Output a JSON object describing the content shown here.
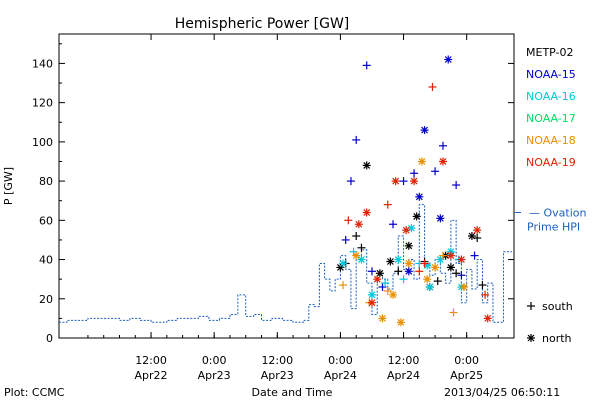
{
  "chart_data": {
    "type": "scatter",
    "title": "Hemispheric Power [GW]",
    "ylabel": "P [GW]",
    "xlabel": "Date and Time",
    "footer_left": "Plot: CCMC",
    "footer_right": "2013/04/25 06:50:11",
    "ylim": [
      0,
      155
    ],
    "yticks": [
      0,
      20,
      40,
      60,
      80,
      100,
      120,
      140
    ],
    "xlim": [
      "2013-04-21T18:30",
      "2013-04-25T09:00"
    ],
    "xticks": [
      {
        "t": "2013-04-22T12:00",
        "line1": "12:00",
        "line2": "Apr22"
      },
      {
        "t": "2013-04-23T00:00",
        "line1": "0:00",
        "line2": "Apr23"
      },
      {
        "t": "2013-04-23T12:00",
        "line1": "12:00",
        "line2": "Apr23"
      },
      {
        "t": "2013-04-24T00:00",
        "line1": "0:00",
        "line2": "Apr24"
      },
      {
        "t": "2013-04-24T12:00",
        "line1": "12:00",
        "line2": "Apr24"
      },
      {
        "t": "2013-04-25T00:00",
        "line1": "0:00",
        "line2": "Apr25"
      }
    ],
    "grid": false,
    "legend_position": "right",
    "legend": [
      {
        "name": "METP-02",
        "color": "#000000"
      },
      {
        "name": "NOAA-15",
        "color": "#0000c8"
      },
      {
        "name": "NOAA-16",
        "color": "#00c8dc"
      },
      {
        "name": "NOAA-17",
        "color": "#00dc64"
      },
      {
        "name": "NOAA-18",
        "color": "#e89000"
      },
      {
        "name": "NOAA-19",
        "color": "#e02000"
      }
    ],
    "ovation": {
      "name": "— Ovation Prime HPI",
      "line1": "— Ovation",
      "line2": "Prime HPI",
      "color": "#1c5fbf",
      "arrow_value": 64,
      "points": [
        [
          "2013-04-21T18:30",
          8
        ],
        [
          "2013-04-21T20:00",
          9
        ],
        [
          "2013-04-21T22:00",
          9
        ],
        [
          "2013-04-22T00:00",
          10
        ],
        [
          "2013-04-22T03:00",
          10
        ],
        [
          "2013-04-22T06:00",
          9
        ],
        [
          "2013-04-22T08:00",
          10
        ],
        [
          "2013-04-22T10:00",
          9
        ],
        [
          "2013-04-22T12:00",
          8
        ],
        [
          "2013-04-22T15:00",
          9
        ],
        [
          "2013-04-22T17:00",
          10
        ],
        [
          "2013-04-22T19:00",
          10
        ],
        [
          "2013-04-22T21:00",
          11
        ],
        [
          "2013-04-22T23:00",
          9
        ],
        [
          "2013-04-23T01:00",
          10
        ],
        [
          "2013-04-23T03:00",
          12
        ],
        [
          "2013-04-23T04:30",
          22
        ],
        [
          "2013-04-23T06:00",
          11
        ],
        [
          "2013-04-23T07:30",
          12
        ],
        [
          "2013-04-23T09:00",
          9
        ],
        [
          "2013-04-23T11:00",
          10
        ],
        [
          "2013-04-23T13:00",
          9
        ],
        [
          "2013-04-23T15:00",
          8
        ],
        [
          "2013-04-23T17:00",
          9
        ],
        [
          "2013-04-23T18:00",
          17
        ],
        [
          "2013-04-23T19:00",
          16
        ],
        [
          "2013-04-23T20:00",
          38
        ],
        [
          "2013-04-23T21:00",
          30
        ],
        [
          "2013-04-23T22:00",
          24
        ],
        [
          "2013-04-23T23:00",
          30
        ],
        [
          "2013-04-24T00:00",
          42
        ],
        [
          "2013-04-24T01:00",
          35
        ],
        [
          "2013-04-24T02:00",
          15
        ],
        [
          "2013-04-24T03:00",
          40
        ],
        [
          "2013-04-24T04:00",
          45
        ],
        [
          "2013-04-24T05:00",
          28
        ],
        [
          "2013-04-24T06:00",
          12
        ],
        [
          "2013-04-24T07:00",
          32
        ],
        [
          "2013-04-24T08:00",
          30
        ],
        [
          "2013-04-24T09:00",
          25
        ],
        [
          "2013-04-24T10:00",
          33
        ],
        [
          "2013-04-24T11:00",
          52
        ],
        [
          "2013-04-24T12:00",
          35
        ],
        [
          "2013-04-24T13:00",
          40
        ],
        [
          "2013-04-24T14:00",
          30
        ],
        [
          "2013-04-24T15:00",
          68
        ],
        [
          "2013-04-24T16:00",
          38
        ],
        [
          "2013-04-24T17:00",
          32
        ],
        [
          "2013-04-24T18:00",
          40
        ],
        [
          "2013-04-24T19:00",
          33
        ],
        [
          "2013-04-24T20:00",
          28
        ],
        [
          "2013-04-24T21:00",
          60
        ],
        [
          "2013-04-24T22:00",
          38
        ],
        [
          "2013-04-24T23:00",
          18
        ],
        [
          "2013-04-25T00:00",
          35
        ],
        [
          "2013-04-25T01:00",
          25
        ],
        [
          "2013-04-25T02:00",
          40
        ],
        [
          "2013-04-25T03:00",
          18
        ],
        [
          "2013-04-25T04:00",
          28
        ],
        [
          "2013-04-25T05:00",
          8
        ],
        [
          "2013-04-25T06:00",
          8
        ],
        [
          "2013-04-25T07:00",
          44
        ]
      ]
    },
    "marker_legend": [
      {
        "label": "south",
        "marker": "plus"
      },
      {
        "label": "north",
        "marker": "star"
      }
    ],
    "series": [
      {
        "name": "METP-02",
        "color": "#000000",
        "points": [
          [
            "2013-04-24T00:00",
            36,
            "star"
          ],
          [
            "2013-04-24T01:00",
            38,
            "plus"
          ],
          [
            "2013-04-24T03:00",
            52,
            "plus"
          ],
          [
            "2013-04-24T04:00",
            46,
            "plus"
          ],
          [
            "2013-04-24T05:00",
            88,
            "star"
          ],
          [
            "2013-04-24T07:30",
            33,
            "star"
          ],
          [
            "2013-04-24T09:30",
            39,
            "star"
          ],
          [
            "2013-04-24T11:00",
            34,
            "plus"
          ],
          [
            "2013-04-24T13:00",
            47,
            "star"
          ],
          [
            "2013-04-24T14:30",
            62,
            "star"
          ],
          [
            "2013-04-24T16:00",
            39,
            "plus"
          ],
          [
            "2013-04-24T17:00",
            26,
            "star"
          ],
          [
            "2013-04-24T18:30",
            29,
            "plus"
          ],
          [
            "2013-04-24T20:00",
            42,
            "star"
          ],
          [
            "2013-04-24T21:00",
            36,
            "star"
          ],
          [
            "2013-04-24T22:00",
            33,
            "plus"
          ],
          [
            "2013-04-25T01:00",
            52,
            "star"
          ],
          [
            "2013-04-25T03:00",
            27,
            "plus"
          ],
          [
            "2013-04-25T02:00",
            51,
            "plus"
          ]
        ]
      },
      {
        "name": "NOAA-15",
        "color": "#0000c8",
        "points": [
          [
            "2013-04-24T01:00",
            50,
            "plus"
          ],
          [
            "2013-04-24T02:00",
            80,
            "plus"
          ],
          [
            "2013-04-24T03:00",
            101,
            "plus"
          ],
          [
            "2013-04-24T05:00",
            139,
            "plus"
          ],
          [
            "2013-04-24T06:00",
            34,
            "plus"
          ],
          [
            "2013-04-24T08:00",
            26,
            "plus"
          ],
          [
            "2013-04-24T10:00",
            58,
            "plus"
          ],
          [
            "2013-04-24T12:00",
            80,
            "plus"
          ],
          [
            "2013-04-24T14:00",
            84,
            "plus"
          ],
          [
            "2013-04-24T15:00",
            72,
            "star"
          ],
          [
            "2013-04-24T16:00",
            106,
            "star"
          ],
          [
            "2013-04-24T18:00",
            85,
            "plus"
          ],
          [
            "2013-04-24T19:30",
            98,
            "plus"
          ],
          [
            "2013-04-24T20:30",
            142,
            "star"
          ],
          [
            "2013-04-24T22:00",
            78,
            "plus"
          ],
          [
            "2013-04-24T19:00",
            61,
            "star"
          ],
          [
            "2013-04-24T13:00",
            34,
            "star"
          ],
          [
            "2013-04-24T23:00",
            32,
            "plus"
          ],
          [
            "2013-04-25T01:30",
            42,
            "plus"
          ]
        ]
      },
      {
        "name": "NOAA-16",
        "color": "#00c8dc",
        "points": [
          [
            "2013-04-24T00:30",
            38,
            "star"
          ],
          [
            "2013-04-24T02:30",
            44,
            "plus"
          ],
          [
            "2013-04-24T04:00",
            40,
            "star"
          ],
          [
            "2013-04-24T06:00",
            22,
            "star"
          ],
          [
            "2013-04-24T08:30",
            28,
            "plus"
          ],
          [
            "2013-04-24T11:00",
            40,
            "star"
          ],
          [
            "2013-04-24T13:30",
            56,
            "star"
          ],
          [
            "2013-04-24T15:00",
            38,
            "plus"
          ],
          [
            "2013-04-24T17:00",
            26,
            "star"
          ],
          [
            "2013-04-24T19:00",
            40,
            "star"
          ],
          [
            "2013-04-24T21:00",
            44,
            "star"
          ],
          [
            "2013-04-24T23:00",
            26,
            "star"
          ],
          [
            "2013-04-24T12:00",
            30,
            "plus"
          ],
          [
            "2013-04-24T16:30",
            37,
            "star"
          ],
          [
            "2013-04-24T22:30",
            40,
            "plus"
          ]
        ]
      },
      {
        "name": "NOAA-17",
        "color": "#00dc64",
        "points": []
      },
      {
        "name": "NOAA-18",
        "color": "#e89000",
        "points": [
          [
            "2013-04-24T00:30",
            27,
            "plus"
          ],
          [
            "2013-04-24T03:00",
            42,
            "star"
          ],
          [
            "2013-04-24T05:30",
            18,
            "plus"
          ],
          [
            "2013-04-24T08:00",
            10,
            "star"
          ],
          [
            "2013-04-24T10:00",
            22,
            "star"
          ],
          [
            "2013-04-24T11:30",
            8,
            "star"
          ],
          [
            "2013-04-24T13:00",
            38,
            "star"
          ],
          [
            "2013-04-24T15:30",
            90,
            "star"
          ],
          [
            "2013-04-24T18:00",
            36,
            "star"
          ],
          [
            "2013-04-24T19:30",
            42,
            "plus"
          ],
          [
            "2013-04-24T21:30",
            13,
            "plus"
          ],
          [
            "2013-04-24T23:30",
            26,
            "star"
          ],
          [
            "2013-04-24T09:00",
            24,
            "plus"
          ],
          [
            "2013-04-24T16:30",
            30,
            "star"
          ]
        ]
      },
      {
        "name": "NOAA-19",
        "color": "#e02000",
        "points": [
          [
            "2013-04-24T01:30",
            60,
            "plus"
          ],
          [
            "2013-04-24T03:30",
            58,
            "star"
          ],
          [
            "2013-04-24T05:00",
            64,
            "star"
          ],
          [
            "2013-04-24T07:00",
            30,
            "star"
          ],
          [
            "2013-04-24T09:00",
            68,
            "plus"
          ],
          [
            "2013-04-24T10:30",
            80,
            "star"
          ],
          [
            "2013-04-24T12:30",
            55,
            "star"
          ],
          [
            "2013-04-24T14:00",
            80,
            "star"
          ],
          [
            "2013-04-24T16:00",
            38,
            "plus"
          ],
          [
            "2013-04-24T17:30",
            128,
            "plus"
          ],
          [
            "2013-04-24T19:30",
            90,
            "star"
          ],
          [
            "2013-04-24T21:00",
            42,
            "star"
          ],
          [
            "2013-04-24T23:00",
            40,
            "star"
          ],
          [
            "2013-04-25T02:00",
            55,
            "star"
          ],
          [
            "2013-04-25T03:30",
            22,
            "plus"
          ],
          [
            "2013-04-25T04:00",
            10,
            "star"
          ],
          [
            "2013-04-24T06:00",
            18,
            "star"
          ],
          [
            "2013-04-24T15:00",
            34,
            "plus"
          ]
        ]
      }
    ]
  }
}
